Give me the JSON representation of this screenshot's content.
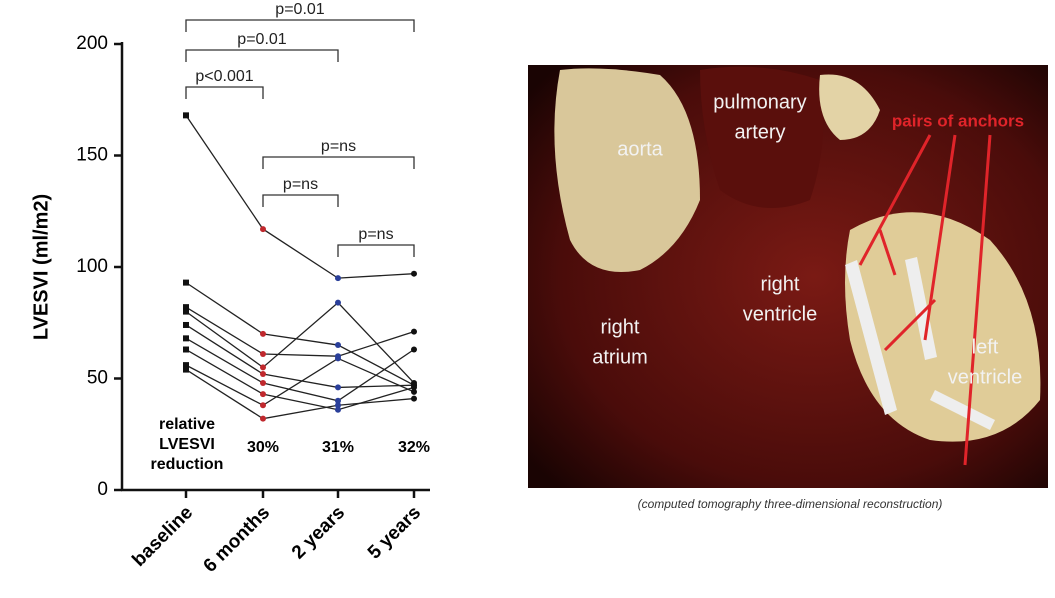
{
  "chart_data": {
    "type": "line",
    "y_label": "LVESVI (ml/m2)",
    "categories": [
      "baseline",
      "6 months",
      "2 years",
      "5 years"
    ],
    "ylim": [
      0,
      200
    ],
    "yticks": [
      0,
      50,
      100,
      150,
      200
    ],
    "line_color": "#222",
    "point_colors": [
      "#111",
      "#c0282d",
      "#2a3f9a",
      "#111"
    ],
    "series": [
      {
        "values": [
          168,
          117,
          95,
          97
        ]
      },
      {
        "values": [
          93,
          70,
          65,
          47
        ]
      },
      {
        "values": [
          82,
          61,
          60,
          71
        ]
      },
      {
        "values": [
          80,
          55,
          84,
          48
        ]
      },
      {
        "values": [
          74,
          52,
          46,
          47
        ]
      },
      {
        "values": [
          68,
          48,
          40,
          63
        ]
      },
      {
        "values": [
          63,
          43,
          36,
          46
        ]
      },
      {
        "values": [
          56,
          38,
          59,
          44
        ]
      },
      {
        "values": [
          54,
          32,
          38,
          41
        ]
      }
    ],
    "annotations": [
      {
        "text": "p=0.01",
        "from": 0,
        "to": 3
      },
      {
        "text": "p=0.01",
        "from": 0,
        "to": 2
      },
      {
        "text": "p<0.001",
        "from": 0,
        "to": 1
      },
      {
        "text": "p=ns",
        "from": 1,
        "to": 3
      },
      {
        "text": "p=ns",
        "from": 1,
        "to": 2
      },
      {
        "text": "p=ns",
        "from": 2,
        "to": 3
      }
    ],
    "reduction_label": [
      "relative",
      "LVESVI",
      "reduction"
    ],
    "reduction_labels": [
      "30%",
      "31%",
      "32%"
    ]
  },
  "image": {
    "labels": [
      [
        "aorta"
      ],
      [
        "pulmonary",
        "artery"
      ],
      [
        "right",
        "ventricle"
      ],
      [
        "right",
        "atrium"
      ],
      [
        "left",
        "ventricle"
      ]
    ],
    "callout": "pairs of anchors",
    "caption": "(computed tomography three-dimensional reconstruction)"
  }
}
